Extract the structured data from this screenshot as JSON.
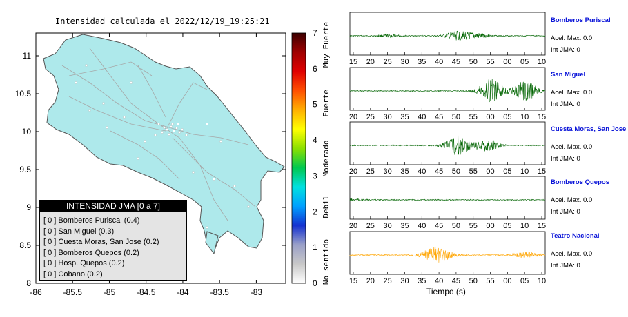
{
  "chart_data": [
    {
      "type": "map",
      "title": "Intensidad calculada el 2022/12/19_19:25:21",
      "x_ticks": [
        "-86",
        "-85.5",
        "-85",
        "-84.5",
        "-84",
        "-83.5",
        "-83"
      ],
      "y_ticks": [
        "11",
        "10.5",
        "10",
        "9.5",
        "9",
        "8.5",
        "8"
      ],
      "xlim": [
        -86,
        -82.6
      ],
      "ylim": [
        8,
        11.3
      ],
      "land_color": "#aee9eb",
      "colorbar": {
        "range": [
          0,
          7
        ],
        "ticks": [
          "0",
          "1",
          "2",
          "3",
          "4",
          "5",
          "6",
          "7"
        ],
        "labels": [
          "No sentido",
          "Debil",
          "Moderado",
          "Fuerte",
          "Muy Fuerte"
        ]
      },
      "legend": {
        "title": "INTENSIDAD JMA [0 a 7]",
        "entries": [
          {
            "level": "[ 0 ]",
            "name": "Bomberos Puriscal (0.4)"
          },
          {
            "level": "[ 0 ]",
            "name": "San Miguel (0.3)"
          },
          {
            "level": "[ 0 ]",
            "name": "Cuesta Moras, San Jose (0.2)"
          },
          {
            "level": "[ 0 ]",
            "name": "Bomberos Quepos (0.2)"
          },
          {
            "level": "[ 0 ]",
            "name": "Hosp. Quepos (0.2)"
          },
          {
            "level": "[ 0 ]",
            "name": "Cobano (0.2)"
          }
        ]
      }
    },
    {
      "type": "line",
      "xlabel": "Tiempo (s)",
      "series": [
        {
          "name": "Bomberos Puriscal",
          "accel": "Acel. Max. 0.0",
          "jma": "Int JMA: 0",
          "color": "#006400",
          "ticks": [
            "15",
            "20",
            "25",
            "30",
            "35",
            "40",
            "45",
            "50",
            "55",
            "00",
            "05",
            "10"
          ],
          "bursts": [
            [
              0.2,
              0.06
            ],
            [
              0.55,
              0.22
            ],
            [
              0.65,
              0.12
            ]
          ]
        },
        {
          "name": "San Miguel",
          "accel": "Acel. Max. 0.0",
          "jma": "Int JMA: 0",
          "color": "#006400",
          "ticks": [
            "20",
            "25",
            "30",
            "35",
            "40",
            "45",
            "50",
            "55",
            "00",
            "05",
            "10",
            "15"
          ],
          "bursts": [
            [
              0.72,
              0.6
            ],
            [
              0.9,
              0.5
            ]
          ]
        },
        {
          "name": "Cuesta Moras, San Jose",
          "accel": "Acel. Max. 0.0",
          "jma": "Int JMA: 0",
          "color": "#006400",
          "ticks": [
            "20",
            "25",
            "30",
            "35",
            "40",
            "45",
            "50",
            "55",
            "00",
            "05",
            "10",
            "15"
          ],
          "bursts": [
            [
              0.55,
              0.5
            ],
            [
              0.7,
              0.3
            ]
          ]
        },
        {
          "name": "Bomberos Quepos",
          "accel": "Acel. Max. 0.0",
          "jma": "Int JMA: 0",
          "color": "#006400",
          "ticks": [
            "20",
            "25",
            "30",
            "35",
            "40",
            "45",
            "50",
            "55",
            "00",
            "05",
            "10",
            "15"
          ],
          "bursts": [
            [
              0.01,
              0.05
            ]
          ]
        },
        {
          "name": "Teatro Nacional",
          "accel": "Acel. Max. 0.0",
          "jma": "Int JMA: 0",
          "color": "#ffa500",
          "ticks": [
            "15",
            "20",
            "25",
            "30",
            "35",
            "40",
            "45",
            "50",
            "55",
            "00",
            "05",
            "10"
          ],
          "bursts": [
            [
              0.42,
              0.3
            ],
            [
              0.48,
              0.2
            ],
            [
              0.9,
              0.15
            ]
          ]
        }
      ]
    }
  ]
}
